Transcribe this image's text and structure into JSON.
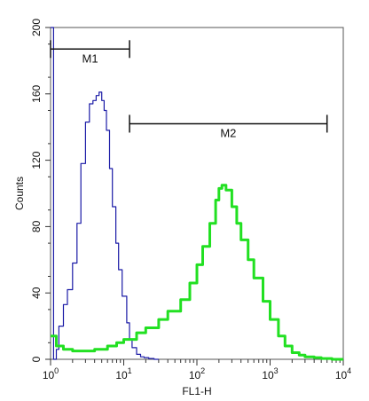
{
  "chart_data": {
    "type": "line",
    "xlabel": "FL1-H",
    "ylabel": "Counts",
    "xscale": "log",
    "xlim": [
      1,
      10000
    ],
    "ylim": [
      0,
      200
    ],
    "grid": false,
    "x_ticks": [
      {
        "value": 1,
        "base": "10",
        "exp": "0"
      },
      {
        "value": 10,
        "base": "10",
        "exp": "1"
      },
      {
        "value": 100,
        "base": "10",
        "exp": "2"
      },
      {
        "value": 1000,
        "base": "10",
        "exp": "3"
      },
      {
        "value": 10000,
        "base": "10",
        "exp": "4"
      }
    ],
    "y_ticks": [
      "0",
      "40",
      "80",
      "120",
      "160",
      "200"
    ],
    "gates": [
      {
        "label": "M1",
        "x_start": 1,
        "x_end": 12,
        "y": 187
      },
      {
        "label": "M2",
        "x_start": 12,
        "x_end": 6000,
        "y": 142
      }
    ],
    "series": [
      {
        "color": "#1a1aa6",
        "x": [
          1,
          1.1,
          1.2,
          1.3,
          1.5,
          1.7,
          2.0,
          2.3,
          2.6,
          3.0,
          3.4,
          3.8,
          4.2,
          4.6,
          5.0,
          5.4,
          5.8,
          6.4,
          7.0,
          7.8,
          8.5,
          9.5,
          11,
          12,
          13,
          15,
          17,
          19,
          22,
          26,
          30
        ],
        "y": [
          200,
          0,
          6,
          20,
          33,
          42,
          58,
          82,
          118,
          143,
          154,
          156,
          159,
          161,
          156,
          150,
          138,
          115,
          92,
          70,
          54,
          38,
          22,
          12,
          7,
          3,
          1.5,
          1,
          0.5,
          0,
          0
        ]
      },
      {
        "color": "#22e022",
        "x": [
          1,
          1.2,
          1.5,
          2,
          3,
          4,
          6,
          8,
          10,
          15,
          20,
          30,
          40,
          60,
          80,
          100,
          120,
          150,
          180,
          200,
          220,
          250,
          300,
          350,
          400,
          500,
          600,
          800,
          1000,
          1300,
          1600,
          2000,
          2500,
          3000,
          4000,
          5000,
          7000,
          10000
        ],
        "y": [
          14,
          8,
          6,
          5,
          5,
          6,
          8,
          10,
          12,
          16,
          19,
          24,
          29,
          36,
          46,
          57,
          68,
          82,
          96,
          103,
          105,
          102,
          92,
          82,
          72,
          60,
          49,
          35,
          24,
          14,
          8,
          4,
          2.5,
          1.5,
          1,
          0.5,
          0,
          0
        ]
      }
    ]
  }
}
